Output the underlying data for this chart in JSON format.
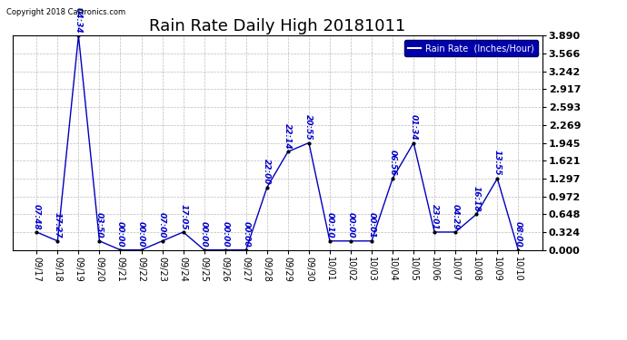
{
  "title": "Rain Rate Daily High 20181011",
  "copyright": "Copyright 2018 Cartronics.com",
  "legend_label": "Rain Rate  (Inches/Hour)",
  "x_labels": [
    "09/17",
    "09/18",
    "09/19",
    "09/20",
    "09/21",
    "09/22",
    "09/23",
    "09/24",
    "09/25",
    "09/26",
    "09/27",
    "09/28",
    "09/29",
    "09/30",
    "10/01",
    "10/02",
    "10/03",
    "10/04",
    "10/05",
    "10/06",
    "10/07",
    "10/08",
    "10/09",
    "10/10"
  ],
  "y_values": [
    0.324,
    0.162,
    3.89,
    0.162,
    0.0,
    0.0,
    0.162,
    0.324,
    0.0,
    0.0,
    0.0,
    1.135,
    1.783,
    1.945,
    0.162,
    0.162,
    0.162,
    1.297,
    1.945,
    0.324,
    0.324,
    0.648,
    1.297,
    0.0
  ],
  "point_labels": [
    "07:48",
    "17:27",
    "04:34",
    "03:50",
    "00:00",
    "00:00",
    "07:00",
    "17:05",
    "00:00",
    "00:00",
    "00:00",
    "22:00",
    "22:14",
    "20:55",
    "00:10",
    "00:00",
    "00:01",
    "06:56",
    "01:34",
    "23:01",
    "04:29",
    "16:18",
    "13:55",
    "08:00"
  ],
  "ylim": [
    0.0,
    3.89
  ],
  "yticks": [
    0.0,
    0.324,
    0.648,
    0.972,
    1.297,
    1.621,
    1.945,
    2.269,
    2.593,
    2.917,
    3.242,
    3.566,
    3.89
  ],
  "line_color": "#0000bb",
  "marker_color": "#000000",
  "label_color": "#0000cc",
  "bg_color": "#ffffff",
  "grid_color": "#bbbbbb",
  "legend_bg": "#0000aa",
  "legend_fg": "#ffffff",
  "title_fontsize": 13,
  "label_fontsize": 6.5,
  "copyright_fontsize": 6.0,
  "ytick_fontsize": 8.0,
  "xtick_fontsize": 7.0
}
